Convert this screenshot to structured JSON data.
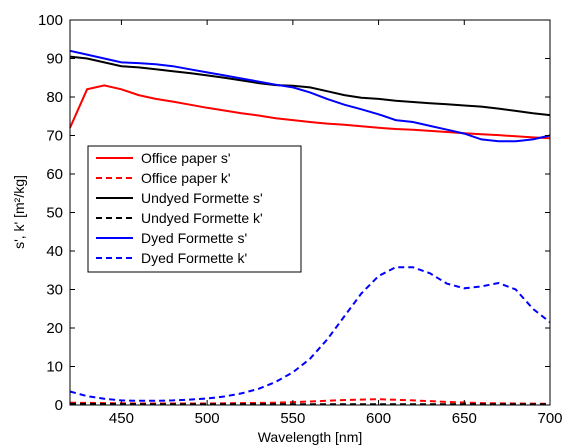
{
  "chart_data": {
    "type": "line",
    "title": "",
    "xlabel": "Wavelength [nm]",
    "ylabel": "s', k' [m²/kg]",
    "xlim": [
      420,
      700
    ],
    "ylim": [
      0,
      100
    ],
    "xticks": [
      450,
      500,
      550,
      600,
      650,
      700
    ],
    "yticks": [
      0,
      10,
      20,
      30,
      40,
      50,
      60,
      70,
      80,
      90,
      100
    ],
    "grid": false,
    "legend_position": "left-middle",
    "series": [
      {
        "name": "Office paper  s'",
        "color": "#ff0000",
        "dash": "solid",
        "x": [
          420,
          430,
          440,
          450,
          460,
          470,
          480,
          490,
          500,
          510,
          520,
          530,
          540,
          550,
          560,
          570,
          580,
          590,
          600,
          610,
          620,
          630,
          640,
          650,
          660,
          670,
          680,
          690,
          700
        ],
        "y": [
          72,
          82,
          83,
          82,
          80.5,
          79.5,
          78.8,
          78,
          77.2,
          76.5,
          75.8,
          75.2,
          74.5,
          74,
          73.5,
          73.1,
          72.8,
          72.4,
          72,
          71.7,
          71.5,
          71.2,
          70.9,
          70.6,
          70.3,
          70.1,
          69.8,
          69.5,
          69.3
        ]
      },
      {
        "name": "Office paper  k'",
        "color": "#ff0000",
        "dash": "dashed",
        "x": [
          420,
          440,
          460,
          480,
          500,
          520,
          540,
          560,
          580,
          600,
          620,
          640,
          660,
          680,
          700
        ],
        "y": [
          0.6,
          0.5,
          0.4,
          0.4,
          0.4,
          0.5,
          0.6,
          0.9,
          1.3,
          1.5,
          1.2,
          0.8,
          0.5,
          0.4,
          0.3
        ]
      },
      {
        "name": "Undyed Formette s'",
        "color": "#000000",
        "dash": "solid",
        "x": [
          420,
          430,
          440,
          450,
          460,
          470,
          480,
          490,
          500,
          510,
          520,
          530,
          540,
          550,
          560,
          570,
          580,
          590,
          600,
          610,
          620,
          630,
          640,
          650,
          660,
          670,
          680,
          690,
          700
        ],
        "y": [
          90.5,
          90,
          89,
          88,
          87.7,
          87.2,
          86.7,
          86.2,
          85.6,
          85,
          84.3,
          83.6,
          83.1,
          82.9,
          82.5,
          81.5,
          80.5,
          79.8,
          79.5,
          79,
          78.7,
          78.4,
          78.1,
          77.8,
          77.5,
          77,
          76.4,
          75.8,
          75.3
        ]
      },
      {
        "name": "Undyed Formette k'",
        "color": "#000000",
        "dash": "dashed",
        "x": [
          420,
          460,
          500,
          540,
          580,
          620,
          660,
          700
        ],
        "y": [
          0.3,
          0.2,
          0.2,
          0.2,
          0.2,
          0.2,
          0.2,
          0.2
        ]
      },
      {
        "name": "Dyed Formette s'",
        "color": "#0000ff",
        "dash": "solid",
        "x": [
          420,
          430,
          440,
          450,
          460,
          470,
          480,
          490,
          500,
          510,
          520,
          530,
          540,
          550,
          560,
          570,
          580,
          590,
          600,
          610,
          620,
          630,
          640,
          650,
          660,
          670,
          680,
          690,
          700
        ],
        "y": [
          92,
          91,
          90,
          89,
          88.8,
          88.5,
          88,
          87.2,
          86.4,
          85.6,
          84.8,
          84,
          83.2,
          82.5,
          81.2,
          79.5,
          78,
          76.8,
          75.5,
          74,
          73.5,
          72.5,
          71.5,
          70.5,
          69,
          68.5,
          68.5,
          69,
          70
        ]
      },
      {
        "name": "Dyed Formette k'",
        "color": "#0000ff",
        "dash": "dashed",
        "x": [
          420,
          430,
          440,
          450,
          460,
          470,
          480,
          490,
          500,
          510,
          520,
          530,
          540,
          550,
          560,
          570,
          580,
          590,
          600,
          610,
          620,
          630,
          640,
          650,
          660,
          670,
          680,
          690,
          700
        ],
        "y": [
          3.5,
          2.3,
          1.6,
          1.2,
          1.1,
          1.1,
          1.2,
          1.4,
          1.7,
          2.2,
          3,
          4.2,
          6,
          8.5,
          12,
          17,
          23,
          29,
          33.5,
          35.8,
          35.8,
          34.2,
          31.5,
          30.3,
          30.8,
          31.7,
          30,
          25,
          21.5
        ]
      }
    ]
  }
}
